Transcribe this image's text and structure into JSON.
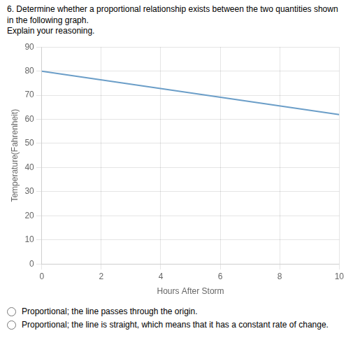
{
  "chart_data": {
    "type": "line",
    "title": "6. Determine whether a proportional relationship exists between the two quantities shown in the following graph.",
    "subtitle": "Explain your reasoning.",
    "x_label": "Hours After Storm",
    "y_label": "Temperature(Fahrenheit)",
    "x": [
      0,
      10
    ],
    "values": [
      80,
      62
    ],
    "color": "#6b9ec8",
    "xlim": [
      0,
      10
    ],
    "ylim": [
      0,
      90
    ],
    "xticks": [
      0,
      2,
      4,
      6,
      8,
      10
    ],
    "yticks": [
      0,
      10,
      20,
      30,
      40,
      50,
      60,
      70,
      80,
      90
    ],
    "grid": true,
    "annotations": [
      "Proportional; the line passes through the origin.",
      "Proportional; the line is straight, which means that it has a constant rate of change."
    ]
  }
}
